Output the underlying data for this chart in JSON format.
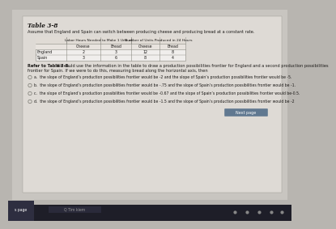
{
  "title": "Table 3-8",
  "assumption": "Assume that England and Spain can switch between producing cheese and producing bread at a constant rate.",
  "col_header1": "Labor Hours Needed to Make 1 Unit of",
  "col_header2": "Number of Units Produced in 24 Hours",
  "sub_headers": [
    "Cheese",
    "Bread",
    "Cheese",
    "Bread"
  ],
  "row_labels": [
    "England",
    "Spain"
  ],
  "data": [
    [
      "2",
      "3",
      "12",
      "8"
    ],
    [
      "3",
      "6",
      "8",
      "4"
    ]
  ],
  "refer_bold": "Refer to Table 3-8.",
  "refer_rest": " We could use the information in the table to draw a production possibilities frontier for England and a second production possibilities",
  "refer_line2": "frontier for Spain. If we were to do this, measuring bread along the horizontal axis, then",
  "choices": [
    "a.  the slope of England’s production possibilities frontier would be -2 and the slope of Spain’s production possibilities frontier would be -5.",
    "b.  the slope of England’s production possibilities frontier would be -.75 and the slope of Spain’s production possibilities frontier would be -1.",
    "c.  the slope of England’s production possibilities frontier would be -0.67 and the slope of Spain’s production possibilities frontier would be-0.5.",
    "d.  the slope of England’s production possibilities frontier would be -1.5 and the slope of Spain’s production possibilities frontier would be -2"
  ],
  "next_btn": "Next page",
  "left_tab": "s page",
  "search_text": "Q Tim kiem",
  "outer_bg": "#b8b5b0",
  "screen_bg": "#c8c5c0",
  "panel_bg": "#dedad5",
  "table_bg": "#f0eeec",
  "table_line": "#888880",
  "text_dark": "#1c1a18",
  "text_mid": "#3a3835",
  "taskbar_bg": "#1e1e28",
  "tab_bg": "#2e2e40",
  "btn_bg": "#607890"
}
